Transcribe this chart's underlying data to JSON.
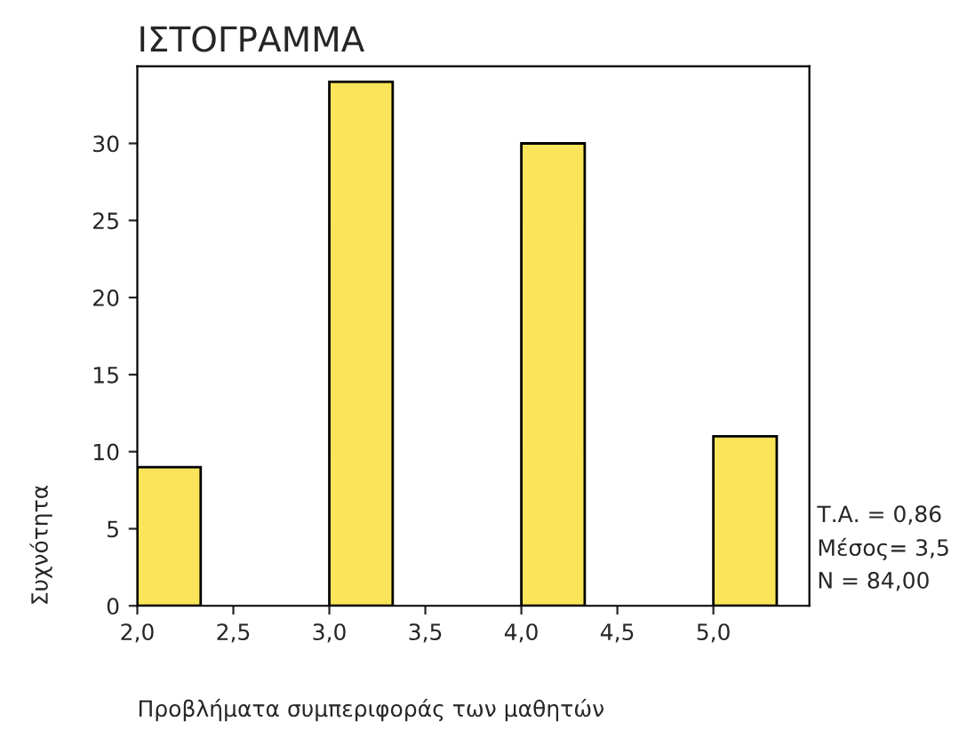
{
  "chart_data": {
    "type": "histogram",
    "title": "ΙΣΤΟΓΡΑΜΜΑ",
    "xlabel": "Προβλήματα συμπεριφοράς των μαθητών",
    "ylabel": "Συχνότητα",
    "bins": [
      2.0,
      2.33,
      3.0,
      3.33,
      4.0,
      4.33,
      5.0,
      5.33
    ],
    "values": [
      9,
      0,
      34,
      0,
      30,
      0,
      11
    ],
    "color": "#fae55a",
    "xlim": [
      2.0,
      5.5
    ],
    "xticks": [
      {
        "value": 2.0,
        "label": "2,0"
      },
      {
        "value": 2.5,
        "label": "2,5"
      },
      {
        "value": 3.0,
        "label": "3,0"
      },
      {
        "value": 3.5,
        "label": "3,5"
      },
      {
        "value": 4.0,
        "label": "4,0"
      },
      {
        "value": 4.5,
        "label": "4,5"
      },
      {
        "value": 5.0,
        "label": "5,0"
      }
    ],
    "ylim": [
      0,
      35
    ],
    "yticks": [
      0,
      5,
      10,
      15,
      20,
      25,
      30
    ],
    "grid": false,
    "legend": false,
    "annotations": [
      "Τ.Α. = 0,86",
      "Μέσος= 3,5",
      "N = 84,00"
    ]
  }
}
